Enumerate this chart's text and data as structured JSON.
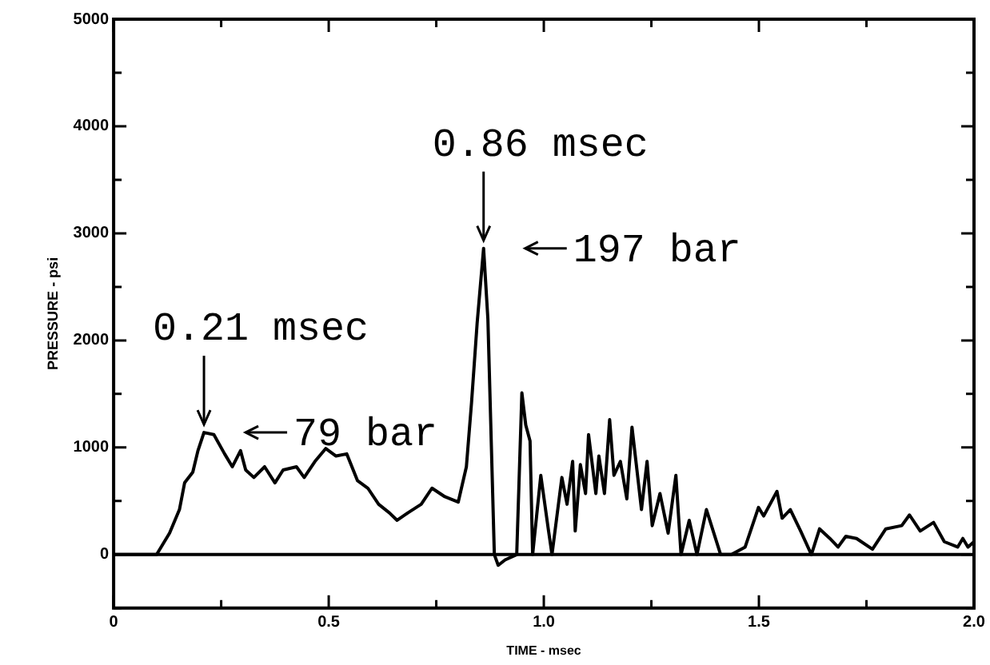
{
  "chart_data": {
    "type": "line",
    "xlabel": "TIME - msec",
    "ylabel": "PRESSURE - psi",
    "xlim": [
      0,
      2.0
    ],
    "xticks": [
      0,
      {
        "value": 0.25,
        "label": null
      },
      {
        "value": 0.5,
        "label": "0.5"
      },
      {
        "value": 0.75,
        "label": null
      },
      {
        "value": 1.0,
        "label": "1.0"
      },
      {
        "value": 1.25,
        "label": null
      },
      {
        "value": 1.5,
        "label": "1.5"
      },
      {
        "value": 1.75,
        "label": null
      },
      {
        "value": 2.0,
        "label": "2.0"
      }
    ],
    "ylim": [
      -500,
      5000
    ],
    "yticks": [
      {
        "value": -500,
        "label": null
      },
      0,
      {
        "value": 500,
        "label": null
      },
      1000,
      {
        "value": 1500,
        "label": null
      },
      2000,
      {
        "value": 2500,
        "label": null
      },
      3000,
      {
        "value": 3500,
        "label": null
      },
      4000,
      {
        "value": 4500,
        "label": null
      },
      5000
    ],
    "grid": false,
    "legend": false,
    "marker": "none",
    "line_style": "solid",
    "ref_lines": [
      {
        "axis": "y",
        "value": 0,
        "color": "#000000"
      }
    ],
    "annotations": [
      {
        "text": "0.21 msec",
        "x": 0.21,
        "y": 1140
      },
      "79 bar",
      {
        "text": "0.86 msec",
        "x": 0.86,
        "y": 2860
      },
      "197 bar"
    ],
    "series": [
      {
        "color": "#000000",
        "x": [
          0,
          0.05,
          0.1,
          0.13,
          0.153,
          0.165,
          0.184,
          0.196,
          0.21,
          0.233,
          0.258,
          0.276,
          0.295,
          0.307,
          0.326,
          0.351,
          0.375,
          0.394,
          0.425,
          0.443,
          0.468,
          0.493,
          0.517,
          0.542,
          0.567,
          0.591,
          0.616,
          0.641,
          0.659,
          0.684,
          0.715,
          0.74,
          0.77,
          0.801,
          0.82,
          0.832,
          0.845,
          0.86,
          0.87,
          0.885,
          0.894,
          0.91,
          0.937,
          0.949,
          0.958,
          0.968,
          0.974,
          0.993,
          1.011,
          1.019,
          1.042,
          1.054,
          1.067,
          1.073,
          1.085,
          1.097,
          1.104,
          1.121,
          1.128,
          1.141,
          1.153,
          1.163,
          1.178,
          1.193,
          1.205,
          1.215,
          1.227,
          1.24,
          1.252,
          1.27,
          1.289,
          1.307,
          1.319,
          1.338,
          1.356,
          1.378,
          1.411,
          1.436,
          1.468,
          1.499,
          1.511,
          1.542,
          1.554,
          1.573,
          1.597,
          1.622,
          1.641,
          1.665,
          1.684,
          1.702,
          1.727,
          1.764,
          1.795,
          1.832,
          1.85,
          1.875,
          1.906,
          1.931,
          1.962,
          1.974,
          1.986,
          2.0
        ],
        "values": [
          0,
          0,
          0,
          200,
          420,
          670,
          770,
          970,
          1140,
          1120,
          940,
          820,
          970,
          790,
          720,
          820,
          670,
          790,
          820,
          720,
          870,
          990,
          920,
          940,
          690,
          620,
          470,
          390,
          320,
          390,
          470,
          620,
          540,
          490,
          820,
          1420,
          2160,
          2860,
          2200,
          0,
          -100,
          -50,
          0,
          1510,
          1210,
          1060,
          0,
          740,
          220,
          0,
          720,
          470,
          870,
          220,
          840,
          570,
          1120,
          570,
          920,
          570,
          1260,
          740,
          870,
          520,
          1190,
          840,
          420,
          870,
          270,
          570,
          200,
          740,
          0,
          320,
          0,
          420,
          0,
          0,
          70,
          440,
          360,
          590,
          340,
          420,
          220,
          0,
          240,
          150,
          70,
          170,
          150,
          50,
          240,
          270,
          370,
          220,
          300,
          120,
          70,
          150,
          70,
          120
        ]
      }
    ]
  }
}
